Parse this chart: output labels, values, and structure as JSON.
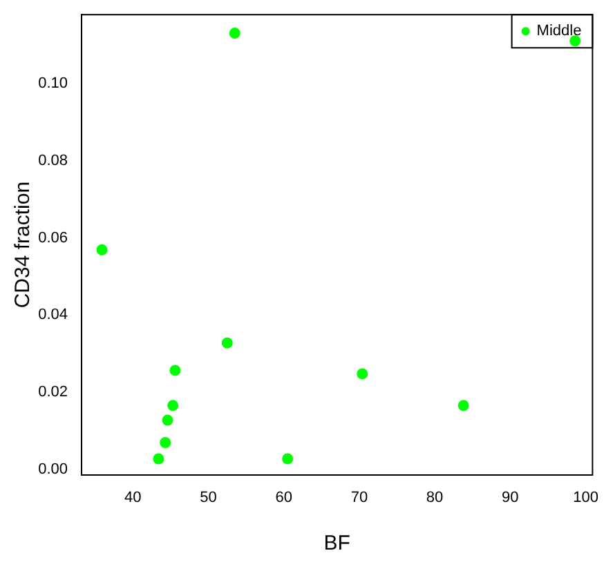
{
  "chart_data": {
    "type": "scatter",
    "xlabel": "BF",
    "ylabel": "CD34 fraction",
    "series": [
      {
        "name": "Middle",
        "color": "#00ff00",
        "x": [
          35.9,
          53.5,
          98.6,
          52.5,
          45.6,
          45.3,
          44.6,
          44.3,
          43.4,
          60.5,
          70.4,
          83.8
        ],
        "values": [
          0.0569,
          0.113,
          0.111,
          0.0328,
          0.0257,
          0.0166,
          0.0128,
          0.007,
          0.0028,
          0.0028,
          0.0248,
          0.0166
        ]
      }
    ],
    "xlim": [
      33.2,
      100.9
    ],
    "xticks": [
      40,
      50,
      60,
      70,
      80,
      90,
      100
    ],
    "ylim": [
      -0.0014,
      0.1178
    ],
    "yticks": [
      {
        "value": 0,
        "label": "0.00"
      },
      {
        "value": 0.02,
        "label": "0.02"
      },
      {
        "value": 0.04,
        "label": "0.04"
      },
      {
        "value": 0.06,
        "label": "0.06"
      },
      {
        "value": 0.08,
        "label": "0.08"
      },
      {
        "value": 0.1,
        "label": "0.10"
      }
    ],
    "grid": false,
    "legend": "top right",
    "marker": "circle"
  }
}
